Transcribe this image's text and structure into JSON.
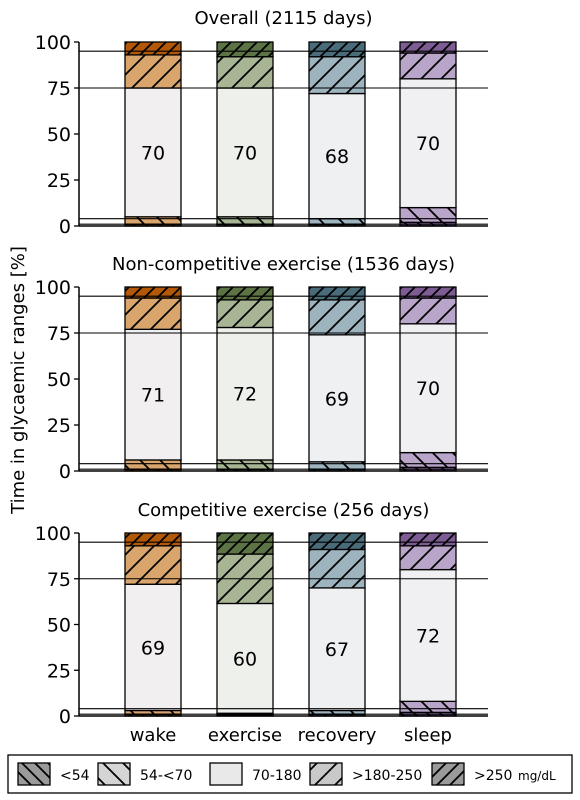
{
  "ylabel": "Time in glycaemic ranges [%]",
  "categories": [
    "wake",
    "exercise",
    "recovery",
    "sleep"
  ],
  "ylim": [
    0,
    100
  ],
  "yticks": [
    "0",
    "25",
    "50",
    "75",
    "100"
  ],
  "reference_lines": [
    1,
    4,
    75,
    95
  ],
  "category_colors": {
    "wake": {
      "dark": "#b35806",
      "light": "#d9a56d",
      "tint": "#f2eff0"
    },
    "exercise": {
      "dark": "#5b7345",
      "light": "#a7b595",
      "tint": "#eef0ec"
    },
    "recovery": {
      "dark": "#4a6b7a",
      "light": "#9db3be",
      "tint": "#eef0f1"
    },
    "sleep": {
      "dark": "#7d5c94",
      "light": "#b9a5c9",
      "tint": "#f0eff1"
    }
  },
  "legend": {
    "items": [
      {
        "label": "<54",
        "hatch": "backslash-dense",
        "fill": "#9a9a9a"
      },
      {
        "label": "54-<70",
        "hatch": "backslash",
        "fill": "#d5d5d5"
      },
      {
        "label": "70-180",
        "hatch": "none",
        "fill": "#e9e9e9"
      },
      {
        "label": ">180-250",
        "hatch": "slash",
        "fill": "#c9c9c9"
      },
      {
        "label": ">250",
        "hatch": "slash-dense",
        "fill": "#9a9a9a"
      }
    ],
    "unit": "mg/dL"
  },
  "chart_data": [
    {
      "type": "bar",
      "title": "Overall (2115 days)",
      "categories": [
        "wake",
        "exercise",
        "recovery",
        "sleep"
      ],
      "ylim": [
        0,
        100
      ],
      "series": [
        {
          "name": "<54",
          "values": [
            1,
            1,
            1,
            2
          ]
        },
        {
          "name": "54-<70",
          "values": [
            4,
            4,
            3,
            8
          ]
        },
        {
          "name": "70-180",
          "values": [
            70,
            70,
            68,
            70
          ]
        },
        {
          "name": ">180-250",
          "values": [
            18,
            17,
            20,
            14
          ]
        },
        {
          "name": ">250",
          "values": [
            7,
            8,
            8,
            6
          ]
        }
      ],
      "labels": [
        "70",
        "70",
        "68",
        "70"
      ]
    },
    {
      "type": "bar",
      "title": "Non-competitive exercise (1536 days)",
      "categories": [
        "wake",
        "exercise",
        "recovery",
        "sleep"
      ],
      "ylim": [
        0,
        100
      ],
      "series": [
        {
          "name": "<54",
          "values": [
            1,
            1,
            1,
            2
          ]
        },
        {
          "name": "54-<70",
          "values": [
            5,
            5,
            4,
            8
          ]
        },
        {
          "name": "70-180",
          "values": [
            71,
            72,
            69,
            70
          ]
        },
        {
          "name": ">180-250",
          "values": [
            17,
            15,
            19,
            14
          ]
        },
        {
          "name": ">250",
          "values": [
            6,
            7,
            7,
            6
          ]
        }
      ],
      "labels": [
        "71",
        "72",
        "69",
        "70"
      ]
    },
    {
      "type": "bar",
      "title": "Competitive exercise (256 days)",
      "categories": [
        "wake",
        "exercise",
        "recovery",
        "sleep"
      ],
      "ylim": [
        0,
        100
      ],
      "series": [
        {
          "name": "<54",
          "values": [
            1,
            0.5,
            1,
            2
          ]
        },
        {
          "name": "54-<70",
          "values": [
            2,
            1,
            2,
            6
          ]
        },
        {
          "name": "70-180",
          "values": [
            69,
            60,
            67,
            72
          ]
        },
        {
          "name": ">180-250",
          "values": [
            21,
            27,
            21,
            13
          ]
        },
        {
          "name": ">250",
          "values": [
            7,
            11.5,
            9,
            7
          ]
        }
      ],
      "labels": [
        "69",
        "60",
        "67",
        "72"
      ]
    }
  ]
}
